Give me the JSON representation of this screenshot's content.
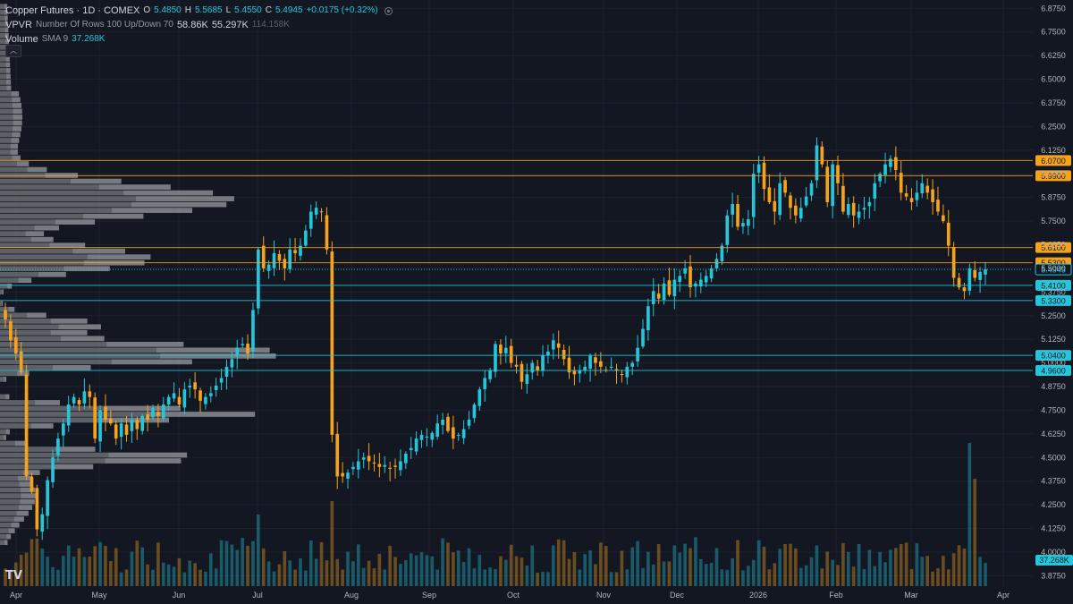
{
  "legend": {
    "title": "Copper Futures · 1D · COMEX",
    "ohlc": [
      {
        "k": "O",
        "v": "5.4850"
      },
      {
        "k": "H",
        "v": "5.5685"
      },
      {
        "k": "L",
        "v": "5.4550"
      },
      {
        "k": "C",
        "v": "5.4945"
      }
    ],
    "change": "+0.0175 (+0.32%)",
    "vpvr_label": "VPVR",
    "vpvr_params": "Number Of Rows 100 Up/Down 70",
    "vpvr_values": [
      "58.86K",
      "55.297K",
      "114.158K"
    ],
    "volume_label": "Volume",
    "volume_params": "SMA 9",
    "volume_value": "37.268K",
    "collapse_icon": "chevron-up-icon",
    "logo": "TV"
  },
  "colors": {
    "background": "#131722",
    "up": "#26c6da",
    "down": "#f7a21b",
    "grid": "#1e222d",
    "axis_text": "#b2b5be"
  },
  "chart_data": {
    "type": "candlestick",
    "symbol": "Copper Futures",
    "interval": "1D",
    "exchange": "COMEX",
    "yaxis": {
      "ticks": [
        "6.8750",
        "6.7500",
        "6.6250",
        "6.5000",
        "6.3750",
        "6.2500",
        "6.1250",
        "6.0000",
        "5.8750",
        "5.7500",
        "5.6250",
        "5.5000",
        "5.3750",
        "5.2500",
        "5.1250",
        "5.0000",
        "4.8750",
        "4.7500",
        "4.6250",
        "4.5000",
        "4.3750",
        "4.2500",
        "4.1250",
        "4.0000",
        "3.8750"
      ],
      "ylim": [
        3.82,
        6.9
      ]
    },
    "xaxis": {
      "ticks": [
        "Apr",
        "May",
        "Jun",
        "Jul",
        "Aug",
        "Sep",
        "Oct",
        "Nov",
        "Dec",
        "2026",
        "Feb",
        "Mar",
        "Apr"
      ]
    },
    "price_lines": [
      {
        "label": "6.0700",
        "value": 6.07,
        "kind": "resistance"
      },
      {
        "label": "5.9900",
        "value": 5.99,
        "kind": "resistance"
      },
      {
        "label": "5.6100",
        "value": 5.61,
        "kind": "resistance"
      },
      {
        "label": "5.5300",
        "value": 5.53,
        "kind": "resistance"
      },
      {
        "label": "5.4945",
        "value": 5.4945,
        "kind": "last"
      },
      {
        "label": "5.4100",
        "value": 5.41,
        "kind": "support"
      },
      {
        "label": "5.3300",
        "value": 5.33,
        "kind": "support"
      },
      {
        "label": "5.0400",
        "value": 5.04,
        "kind": "support"
      },
      {
        "label": "4.9600",
        "value": 4.96,
        "kind": "support"
      }
    ],
    "hidden_labels": [
      "5.3750",
      "5.0000"
    ],
    "volume_sma_label": "37.268K",
    "closes": [
      5.23,
      5.12,
      5.05,
      4.95,
      4.4,
      4.32,
      4.12,
      4.2,
      4.38,
      4.5,
      4.6,
      4.68,
      4.78,
      4.82,
      4.78,
      4.85,
      4.82,
      4.6,
      4.75,
      4.7,
      4.68,
      4.6,
      4.68,
      4.62,
      4.7,
      4.65,
      4.72,
      4.7,
      4.76,
      4.72,
      4.78,
      4.82,
      4.84,
      4.78,
      4.86,
      4.88,
      4.86,
      4.8,
      4.82,
      4.84,
      4.88,
      4.92,
      4.98,
      5.02,
      5.08,
      5.1,
      5.05,
      5.28,
      5.6,
      5.5,
      5.52,
      5.58,
      5.54,
      5.5,
      5.6,
      5.58,
      5.62,
      5.7,
      5.8,
      5.82,
      5.8,
      5.6,
      4.62,
      4.4,
      4.4,
      4.42,
      4.45,
      4.48,
      4.5,
      4.48,
      4.47,
      4.45,
      4.46,
      4.44,
      4.45,
      4.48,
      4.52,
      4.55,
      4.6,
      4.62,
      4.61,
      4.63,
      4.68,
      4.7,
      4.64,
      4.6,
      4.62,
      4.65,
      4.7,
      4.78,
      4.86,
      4.92,
      4.96,
      5.1,
      5.05,
      5.08,
      5.0,
      4.98,
      4.9,
      4.94,
      5.0,
      4.96,
      5.04,
      5.06,
      5.12,
      5.08,
      5.02,
      4.95,
      4.94,
      4.96,
      4.98,
      5.04,
      5.0,
      4.98,
      4.96,
      4.98,
      4.96,
      4.94,
      4.98,
      5.0,
      5.08,
      5.18,
      5.3,
      5.38,
      5.34,
      5.42,
      5.36,
      5.44,
      5.46,
      5.5,
      5.4,
      5.42,
      5.44,
      5.46,
      5.5,
      5.55,
      5.62,
      5.78,
      5.84,
      5.72,
      5.74,
      5.76,
      6.0,
      6.05,
      5.92,
      5.85,
      5.8,
      5.95,
      5.9,
      5.82,
      5.78,
      5.82,
      5.88,
      5.95,
      6.15,
      6.05,
      5.85,
      6.05,
      5.95,
      5.8,
      5.84,
      5.78,
      5.8,
      5.82,
      5.85,
      5.95,
      6.0,
      6.05,
      6.08,
      6.02,
      5.9,
      5.88,
      5.85,
      5.9,
      5.95,
      5.9,
      5.85,
      5.8,
      5.75,
      5.62,
      5.45,
      5.4,
      5.38,
      5.5,
      5.45,
      5.48,
      5.4945
    ]
  }
}
